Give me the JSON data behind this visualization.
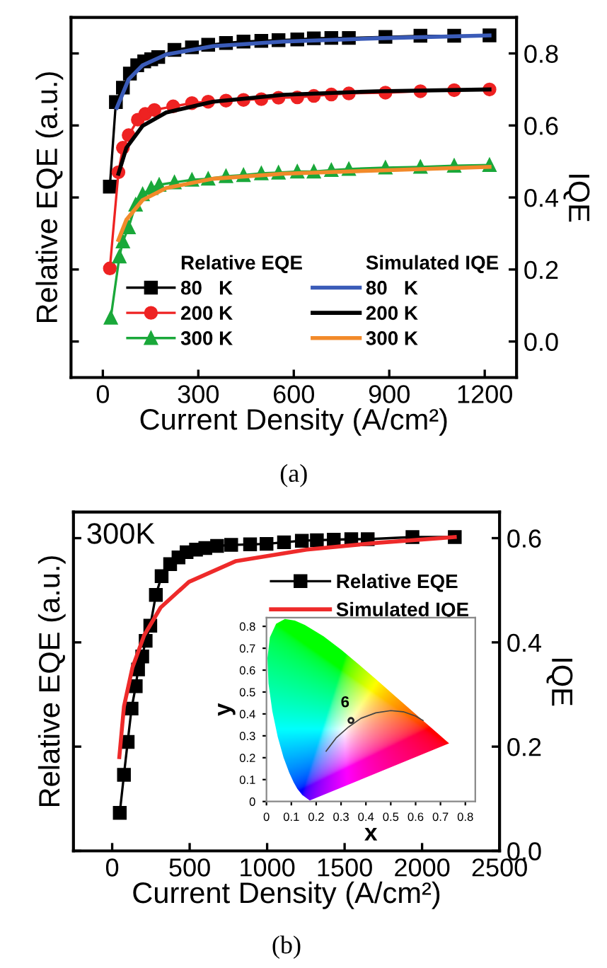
{
  "chart_data": [
    {
      "type": "line",
      "xlabel": "Current Density (A/cm²)",
      "ylabel": "Relative EQE (a.u.)",
      "y2label": "IQE",
      "xlim": [
        -100,
        1300
      ],
      "xticks": [
        0,
        300,
        600,
        900,
        1200
      ],
      "y2lim": [
        -0.1,
        0.9
      ],
      "y2ticks": [
        {
          "value": 0,
          "label": "0.0"
        },
        0.2,
        0.4,
        0.6,
        0.8
      ],
      "legend": "bottom right",
      "line_style": "solid",
      "annotations": [
        "Relative EQE",
        "Simulated IQE",
        "(a)"
      ],
      "series": [
        {
          "name": "80   K",
          "color": "#000000",
          "marker": "square",
          "axis": "y2",
          "x": [
            22,
            41,
            63,
            85,
            108,
            130,
            152,
            174,
            225,
            280,
            331,
            387,
            442,
            498,
            552,
            611,
            663,
            718,
            773,
            888,
            998,
            1104,
            1215
          ],
          "values": [
            0.43,
            0.665,
            0.705,
            0.744,
            0.767,
            0.778,
            0.784,
            0.79,
            0.81,
            0.817,
            0.824,
            0.829,
            0.833,
            0.835,
            0.837,
            0.839,
            0.842,
            0.843,
            0.843,
            0.846,
            0.849,
            0.849,
            0.85
          ]
        },
        {
          "name": "200 K",
          "color": "#ee2222",
          "marker": "circle",
          "axis": "y2",
          "x": [
            22,
            49,
            63,
            81,
            110,
            133,
            162,
            221,
            280,
            331,
            387,
            442,
            498,
            552,
            611,
            663,
            718,
            773,
            888,
            998,
            1104,
            1215
          ],
          "values": [
            0.203,
            0.47,
            0.538,
            0.573,
            0.616,
            0.632,
            0.643,
            0.653,
            0.662,
            0.666,
            0.669,
            0.671,
            0.673,
            0.677,
            0.678,
            0.682,
            0.686,
            0.689,
            0.691,
            0.695,
            0.698,
            0.7
          ]
        },
        {
          "name": "300 K",
          "color": "#1aa83a",
          "marker": "triangle",
          "axis": "y2",
          "x": [
            25,
            52,
            63,
            81,
            103,
            125,
            152,
            177,
            225,
            280,
            331,
            387,
            442,
            498,
            552,
            611,
            663,
            718,
            773,
            888,
            998,
            1104,
            1215
          ],
          "values": [
            0.066,
            0.236,
            0.278,
            0.317,
            0.38,
            0.409,
            0.426,
            0.435,
            0.442,
            0.449,
            0.452,
            0.459,
            0.462,
            0.467,
            0.469,
            0.472,
            0.472,
            0.476,
            0.479,
            0.483,
            0.485,
            0.488,
            0.49
          ]
        },
        {
          "name": "80   K",
          "color": "#3a5bb8",
          "marker": "none",
          "axis": "y2",
          "x": [
            44,
            81,
            125,
            199,
            346,
            567,
            861,
            1215
          ],
          "values": [
            0.649,
            0.728,
            0.767,
            0.797,
            0.82,
            0.833,
            0.842,
            0.85
          ]
        },
        {
          "name": "200 K",
          "color": "#000000",
          "marker": "none",
          "axis": "y2",
          "x": [
            49,
            74,
            125,
            199,
            346,
            567,
            861,
            1215
          ],
          "values": [
            0.466,
            0.538,
            0.599,
            0.636,
            0.666,
            0.685,
            0.695,
            0.7
          ]
        },
        {
          "name": "300 K",
          "color": "#f28a2a",
          "marker": "none",
          "axis": "y2",
          "x": [
            49,
            74,
            125,
            199,
            346,
            567,
            861,
            1215
          ],
          "values": [
            0.282,
            0.338,
            0.393,
            0.426,
            0.452,
            0.466,
            0.475,
            0.485
          ]
        }
      ]
    },
    {
      "type": "line",
      "xlabel": "Current Density (A/cm²)",
      "ylabel": "Relative EQE (a.u.)",
      "y2label": "IQE",
      "xlim": [
        -250,
        2500
      ],
      "xticks": [
        0,
        500,
        1000,
        1500,
        2000,
        2500
      ],
      "y2lim": [
        0,
        0.65
      ],
      "y2ticks": [
        {
          "value": 0,
          "label": "0.0"
        },
        0.2,
        0.4,
        0.6
      ],
      "legend": "top right",
      "line_style": "solid",
      "annotations": [
        "300K",
        "(b)"
      ],
      "series": [
        {
          "name": "Relative EQE",
          "color": "#000000",
          "marker": "square",
          "axis": "y2",
          "x": [
            49,
            76,
            100,
            125,
            152,
            167,
            194,
            216,
            246,
            282,
            319,
            374,
            428,
            480,
            541,
            601,
            677,
            768,
            890,
            996,
            1109,
            1224,
            1321,
            1430,
            1543,
            1649,
            1938,
            2211
          ],
          "values": [
            0.073,
            0.146,
            0.209,
            0.273,
            0.316,
            0.348,
            0.373,
            0.403,
            0.432,
            0.491,
            0.527,
            0.55,
            0.563,
            0.573,
            0.578,
            0.581,
            0.585,
            0.587,
            0.588,
            0.589,
            0.592,
            0.595,
            0.596,
            0.597,
            0.598,
            0.598,
            0.602,
            0.602
          ]
        },
        {
          "name": "Simulated IQE",
          "color": "#ee2a2a",
          "marker": "none",
          "axis": "y2",
          "x": [
            46,
            76,
            131,
            207,
            313,
            495,
            799,
            1254,
            1710,
            2211
          ],
          "values": [
            0.18,
            0.277,
            0.352,
            0.414,
            0.467,
            0.516,
            0.556,
            0.578,
            0.591,
            0.602
          ]
        }
      ]
    },
    {
      "type": "scatter",
      "xlabel": "x",
      "ylabel": "y",
      "series": [
        {
          "type": "scatter",
          "marker": "circle",
          "color": "#222222",
          "x": [
            0.34
          ],
          "values": [
            0.37
          ]
        },
        {
          "type": "line",
          "marker": "none",
          "color": "#444444",
          "x": [
            0.24,
            0.28,
            0.33,
            0.38,
            0.44,
            0.5,
            0.55,
            0.6,
            0.63
          ],
          "values": [
            0.23,
            0.29,
            0.34,
            0.38,
            0.405,
            0.415,
            0.41,
            0.39,
            0.37
          ]
        }
      ],
      "xlim": [
        0,
        0.84
      ],
      "xticks": [
        0,
        0.1,
        0.2,
        0.3,
        0.4,
        0.5,
        0.6,
        0.7,
        0.8
      ],
      "ylim": [
        0,
        0.84
      ],
      "yticks": [
        0,
        0.1,
        0.2,
        0.3,
        0.4,
        0.5,
        0.6,
        0.7,
        0.8
      ],
      "annotations": [
        {
          "text": "6",
          "x": 0.34,
          "y": 0.38
        }
      ]
    }
  ]
}
